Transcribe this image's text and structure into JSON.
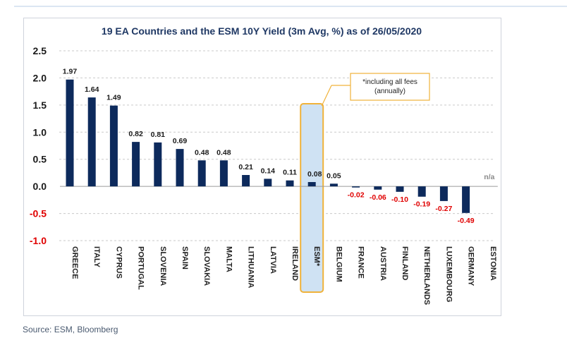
{
  "source": "Source: ESM, Bloomberg",
  "colors": {
    "bar": "#0d2a5c",
    "neg_label": "#e00000",
    "pos_label": "#1a1a1a",
    "highlight_fill": "#cfe2f3",
    "highlight_stroke": "#f0b23a",
    "na_label": "#8a8a8a"
  },
  "chart_data": {
    "type": "bar",
    "title": "19 EA Countries and the ESM 10Y Yield (3m Avg, %) as of 26/05/2020",
    "xlabel": "",
    "ylabel": "",
    "ylim": [
      -1.0,
      2.5
    ],
    "yticks": [
      2.5,
      2.0,
      1.5,
      1.0,
      0.5,
      0.0,
      -0.5,
      -1.0
    ],
    "ytick_labels": [
      "2.5",
      "2.0",
      "1.5",
      "1.0",
      "0.5",
      "0.0",
      "-0.5",
      "-1.0"
    ],
    "grid": true,
    "categories": [
      "GREECE",
      "ITALY",
      "CYPRUS",
      "PORTUGAL",
      "SLOVENIA",
      "SPAIN",
      "SLOVAKIA",
      "MALTA",
      "LITHUANIA",
      "LATVIA",
      "IRELAND",
      "ESM*",
      "BELGIUM",
      "FRANCE",
      "AUSTRIA",
      "FINLAND",
      "NETHERLANDS",
      "LUXEMBOURG",
      "GERMANY",
      "ESTONIA"
    ],
    "values": [
      1.97,
      1.64,
      1.49,
      0.82,
      0.81,
      0.69,
      0.48,
      0.48,
      0.21,
      0.14,
      0.11,
      0.08,
      0.05,
      -0.02,
      -0.06,
      -0.1,
      -0.19,
      -0.27,
      -0.49,
      null
    ],
    "value_labels": [
      "1.97",
      "1.64",
      "1.49",
      "0.82",
      "0.81",
      "0.69",
      "0.48",
      "0.48",
      "0.21",
      "0.14",
      "0.11",
      "0.08",
      "0.05",
      "-0.02",
      "-0.06",
      "-0.10",
      "-0.19",
      "-0.27",
      "-0.49",
      "n/a"
    ],
    "highlight_category": "ESM*",
    "annotation": {
      "text_lines": [
        "*including all fees",
        "(annually)"
      ]
    }
  }
}
